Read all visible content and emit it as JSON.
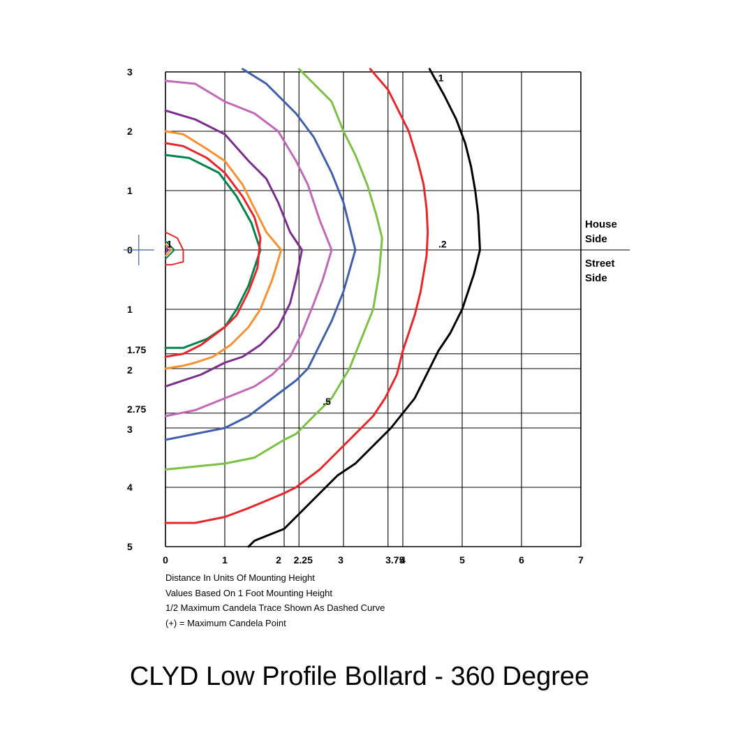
{
  "chart_data": {
    "type": "isofootcandle-contour",
    "title": "CLYD Low Profile Bollard - 360 Degree",
    "x_ticks": [
      "0",
      "1",
      "2",
      "2.25",
      "3",
      "3.75",
      "4",
      "5",
      "6",
      "7"
    ],
    "x_tick_values": [
      0,
      1,
      2,
      2.25,
      3,
      3.75,
      4,
      5,
      6,
      7
    ],
    "y_ticks_house": [
      "0",
      "1",
      "2",
      "3"
    ],
    "y_ticks_house_values": [
      0,
      1,
      2,
      3
    ],
    "y_ticks_street": [
      "1",
      "1.75",
      "2",
      "2.75",
      "3",
      "4",
      "5"
    ],
    "y_ticks_street_values": [
      1,
      1.75,
      2,
      2.75,
      3,
      4,
      5
    ],
    "xlim": [
      0,
      7
    ],
    "ylim": [
      -3,
      5
    ],
    "side_labels": {
      "house": "House\nSide",
      "street": "Street\nSide"
    },
    "notes": [
      "Distance In Units Of Mounting Height",
      "Values Based On 1 Foot Mounting Height",
      "1/2 Maximum Candela Trace Shown As Dashed Curve",
      "(+) = Maximum Candela Point"
    ],
    "contour_labels": [
      {
        "text": ".1",
        "x": 4.55,
        "y": -2.9
      },
      {
        "text": ".2",
        "x": 4.6,
        "y": -0.1
      },
      {
        "text": ".5",
        "x": 2.65,
        "y": 2.55
      },
      {
        "text": "1",
        "x": 0.02,
        "y": -0.1
      }
    ],
    "max_candela_point": {
      "x": -0.45,
      "y": 0
    },
    "series": [
      {
        "color": "#000000",
        "points": [
          [
            4.45,
            -3.05
          ],
          [
            4.7,
            -2.6
          ],
          [
            4.9,
            -2.2
          ],
          [
            5.05,
            -1.8
          ],
          [
            5.15,
            -1.4
          ],
          [
            5.22,
            -1.0
          ],
          [
            5.27,
            -0.6
          ],
          [
            5.3,
            0
          ],
          [
            5.2,
            0.4
          ],
          [
            5.0,
            1.0
          ],
          [
            4.8,
            1.4
          ],
          [
            4.6,
            1.7
          ],
          [
            4.4,
            2.1
          ],
          [
            4.2,
            2.5
          ],
          [
            3.8,
            3.0
          ],
          [
            3.5,
            3.3
          ],
          [
            3.2,
            3.6
          ],
          [
            2.9,
            3.8
          ],
          [
            2.6,
            4.1
          ],
          [
            2.3,
            4.4
          ],
          [
            2.0,
            4.7
          ],
          [
            1.5,
            4.9
          ],
          [
            1.4,
            5.0
          ]
        ]
      },
      {
        "color": "#e8262a",
        "points": [
          [
            3.45,
            -3.05
          ],
          [
            3.75,
            -2.7
          ],
          [
            3.95,
            -2.3
          ],
          [
            4.1,
            -2.0
          ],
          [
            4.25,
            -1.5
          ],
          [
            4.35,
            -1.1
          ],
          [
            4.4,
            -0.7
          ],
          [
            4.42,
            -0.3
          ],
          [
            4.4,
            0.1
          ],
          [
            4.3,
            0.7
          ],
          [
            4.2,
            1.1
          ],
          [
            4.0,
            1.7
          ],
          [
            3.9,
            2.1
          ],
          [
            3.7,
            2.5
          ],
          [
            3.5,
            2.8
          ],
          [
            3.1,
            3.2
          ],
          [
            2.9,
            3.4
          ],
          [
            2.6,
            3.7
          ],
          [
            2.2,
            4.0
          ],
          [
            2.0,
            4.1
          ],
          [
            1.4,
            4.35
          ],
          [
            1.0,
            4.5
          ],
          [
            0.5,
            4.6
          ],
          [
            0,
            4.6
          ]
        ]
      },
      {
        "color": "#7ac143",
        "points": [
          [
            2.25,
            -3.05
          ],
          [
            2.5,
            -2.8
          ],
          [
            2.8,
            -2.5
          ],
          [
            3.0,
            -2.0
          ],
          [
            3.2,
            -1.6
          ],
          [
            3.4,
            -1.1
          ],
          [
            3.55,
            -0.6
          ],
          [
            3.65,
            -0.2
          ],
          [
            3.6,
            0.4
          ],
          [
            3.5,
            1.0
          ],
          [
            3.3,
            1.5
          ],
          [
            3.1,
            2.0
          ],
          [
            2.8,
            2.5
          ],
          [
            2.5,
            2.8
          ],
          [
            2.2,
            3.1
          ],
          [
            2.0,
            3.2
          ],
          [
            1.5,
            3.5
          ],
          [
            1.0,
            3.6
          ],
          [
            0.5,
            3.65
          ],
          [
            0,
            3.7
          ]
        ]
      },
      {
        "color": "#3f5fad",
        "points": [
          [
            1.3,
            -3.05
          ],
          [
            1.7,
            -2.8
          ],
          [
            2.2,
            -2.3
          ],
          [
            2.5,
            -1.9
          ],
          [
            2.8,
            -1.3
          ],
          [
            3.0,
            -0.8
          ],
          [
            3.1,
            -0.4
          ],
          [
            3.2,
            0
          ],
          [
            3.0,
            0.7
          ],
          [
            2.8,
            1.2
          ],
          [
            2.6,
            1.6
          ],
          [
            2.4,
            2.0
          ],
          [
            2.2,
            2.2
          ],
          [
            1.8,
            2.5
          ],
          [
            1.4,
            2.8
          ],
          [
            1.0,
            3.0
          ],
          [
            0.5,
            3.1
          ],
          [
            0,
            3.2
          ]
        ]
      },
      {
        "color": "#c267b8",
        "points": [
          [
            0,
            -2.85
          ],
          [
            0.5,
            -2.8
          ],
          [
            1.0,
            -2.5
          ],
          [
            1.5,
            -2.3
          ],
          [
            1.9,
            -2.0
          ],
          [
            2.2,
            -1.5
          ],
          [
            2.4,
            -1.1
          ],
          [
            2.6,
            -0.5
          ],
          [
            2.8,
            0
          ],
          [
            2.65,
            0.5
          ],
          [
            2.5,
            0.9
          ],
          [
            2.3,
            1.4
          ],
          [
            2.1,
            1.8
          ],
          [
            1.8,
            2.1
          ],
          [
            1.5,
            2.3
          ],
          [
            1.0,
            2.5
          ],
          [
            0.5,
            2.7
          ],
          [
            0,
            2.8
          ]
        ]
      },
      {
        "color": "#7b2d8e",
        "points": [
          [
            0,
            -2.35
          ],
          [
            0.5,
            -2.2
          ],
          [
            1.0,
            -1.95
          ],
          [
            1.4,
            -1.5
          ],
          [
            1.7,
            -1.2
          ],
          [
            1.9,
            -0.8
          ],
          [
            2.1,
            -0.3
          ],
          [
            2.3,
            0
          ],
          [
            2.2,
            0.5
          ],
          [
            2.1,
            0.9
          ],
          [
            1.9,
            1.3
          ],
          [
            1.6,
            1.6
          ],
          [
            1.3,
            1.8
          ],
          [
            1.0,
            1.9
          ],
          [
            0.6,
            2.1
          ],
          [
            0,
            2.3
          ]
        ]
      },
      {
        "color": "#f7902f",
        "points": [
          [
            0,
            -2.0
          ],
          [
            0.3,
            -1.95
          ],
          [
            0.7,
            -1.7
          ],
          [
            1.0,
            -1.5
          ],
          [
            1.3,
            -1.1
          ],
          [
            1.5,
            -0.7
          ],
          [
            1.7,
            -0.3
          ],
          [
            1.95,
            0
          ],
          [
            1.8,
            0.5
          ],
          [
            1.6,
            1.0
          ],
          [
            1.4,
            1.3
          ],
          [
            1.1,
            1.6
          ],
          [
            0.8,
            1.8
          ],
          [
            0.5,
            1.9
          ],
          [
            0.3,
            1.95
          ],
          [
            0,
            2.0
          ]
        ]
      },
      {
        "color": "#00824b",
        "points": [
          [
            0,
            -1.6
          ],
          [
            0.4,
            -1.55
          ],
          [
            0.9,
            -1.3
          ],
          [
            1.2,
            -0.9
          ],
          [
            1.45,
            -0.45
          ],
          [
            1.6,
            0
          ],
          [
            1.4,
            0.6
          ],
          [
            1.2,
            1.0
          ],
          [
            1.0,
            1.3
          ],
          [
            0.7,
            1.5
          ],
          [
            0.3,
            1.65
          ],
          [
            0,
            1.65
          ]
        ]
      },
      {
        "color": "#e8262a",
        "points": [
          [
            0,
            -1.8
          ],
          [
            0.3,
            -1.75
          ],
          [
            0.7,
            -1.55
          ],
          [
            1.0,
            -1.3
          ],
          [
            1.3,
            -0.9
          ],
          [
            1.5,
            -0.55
          ],
          [
            1.6,
            -0.2
          ],
          [
            1.55,
            0.3
          ],
          [
            1.4,
            0.7
          ],
          [
            1.2,
            1.1
          ],
          [
            1.0,
            1.3
          ],
          [
            0.6,
            1.6
          ],
          [
            0.3,
            1.75
          ],
          [
            0,
            1.8
          ]
        ]
      },
      {
        "color": "#e8262a",
        "points": [
          [
            0,
            -0.3
          ],
          [
            0.2,
            -0.2
          ],
          [
            0.3,
            0
          ],
          [
            0.3,
            0.2
          ],
          [
            0.1,
            0.25
          ],
          [
            0,
            0.25
          ]
        ]
      },
      {
        "color": "#00824b",
        "points": [
          [
            0,
            -0.15
          ],
          [
            0.15,
            0
          ],
          [
            0,
            0.15
          ]
        ]
      },
      {
        "color": "#f7902f",
        "points": [
          [
            0,
            -0.1
          ],
          [
            0.1,
            0
          ],
          [
            0,
            0.1
          ]
        ]
      },
      {
        "color": "#7b2d8e",
        "points": [
          [
            0,
            -0.05
          ],
          [
            0.05,
            0
          ],
          [
            0,
            0.05
          ]
        ]
      }
    ]
  }
}
